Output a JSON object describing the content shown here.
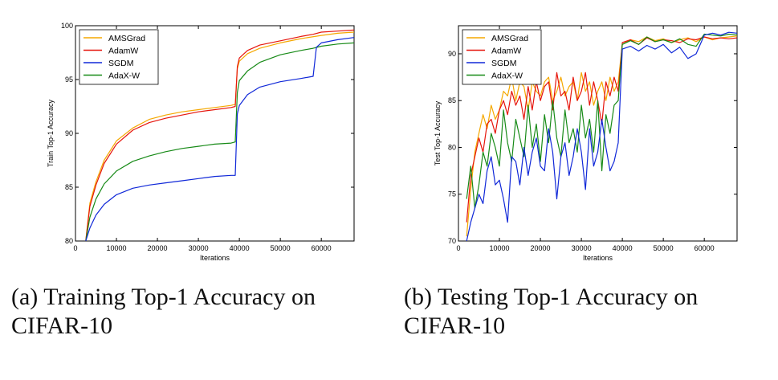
{
  "captions": {
    "a_line1": "(a) Training Top-1 Accuracy on",
    "a_line2": "CIFAR-10",
    "b_line1": "(b) Testing Top-1 Accuracy on",
    "b_line2": "CIFAR-10"
  },
  "colors": {
    "AMSGrad": "#f5a800",
    "AdamW": "#e6150c",
    "SGDM": "#1028d8",
    "AdaX-W": "#178a17"
  },
  "chart_data": [
    {
      "type": "line",
      "xlabel": "Iterations",
      "ylabel": "Train Top-1 Accuracy",
      "xlim": [
        0,
        68000
      ],
      "ylim": [
        80,
        100
      ],
      "xticks": [
        0,
        10000,
        20000,
        30000,
        40000,
        50000,
        60000
      ],
      "yticks": [
        80,
        85,
        90,
        95,
        100
      ],
      "grid": false,
      "legend": "top-left",
      "series": [
        {
          "name": "AMSGrad",
          "x": [
            2500,
            3500,
            5000,
            7000,
            10000,
            14000,
            18000,
            22000,
            26000,
            30000,
            34000,
            38000,
            39000,
            39500,
            40000,
            42000,
            45000,
            50000,
            55000,
            60000,
            64000,
            68000
          ],
          "y": [
            80,
            83.5,
            85.5,
            87.5,
            89.3,
            90.5,
            91.3,
            91.7,
            92.0,
            92.2,
            92.4,
            92.6,
            92.7,
            96.0,
            96.7,
            97.4,
            97.9,
            98.4,
            98.8,
            99.1,
            99.3,
            99.4
          ]
        },
        {
          "name": "AdamW",
          "x": [
            2500,
            3500,
            5000,
            7000,
            10000,
            14000,
            18000,
            22000,
            26000,
            30000,
            34000,
            38000,
            39000,
            39500,
            40000,
            42000,
            45000,
            50000,
            55000,
            58000,
            60000,
            64000,
            68000
          ],
          "y": [
            80,
            83.2,
            85.2,
            87.2,
            89.0,
            90.3,
            91.0,
            91.4,
            91.7,
            92.0,
            92.2,
            92.4,
            92.5,
            96.2,
            97.0,
            97.7,
            98.2,
            98.6,
            99.0,
            99.2,
            99.4,
            99.5,
            99.6
          ]
        },
        {
          "name": "SGDM",
          "x": [
            2500,
            3500,
            5000,
            7000,
            10000,
            14000,
            18000,
            22000,
            26000,
            30000,
            34000,
            38000,
            39000,
            39500,
            40000,
            42000,
            45000,
            50000,
            55000,
            58000,
            58800,
            60000,
            64000,
            68000
          ],
          "y": [
            80,
            81.2,
            82.4,
            83.4,
            84.3,
            84.9,
            85.2,
            85.4,
            85.6,
            85.8,
            86.0,
            86.1,
            86.1,
            91.8,
            92.6,
            93.6,
            94.3,
            94.8,
            95.1,
            95.3,
            98.0,
            98.4,
            98.7,
            98.9
          ]
        },
        {
          "name": "AdaX-W",
          "x": [
            2500,
            3500,
            5000,
            7000,
            10000,
            14000,
            18000,
            22000,
            26000,
            30000,
            34000,
            38000,
            39000,
            39500,
            40000,
            42000,
            45000,
            50000,
            55000,
            58000,
            60000,
            64000,
            68000
          ],
          "y": [
            80,
            82.2,
            83.9,
            85.3,
            86.5,
            87.4,
            87.9,
            88.3,
            88.6,
            88.8,
            89.0,
            89.1,
            89.2,
            93.8,
            94.9,
            95.8,
            96.6,
            97.3,
            97.7,
            97.9,
            98.1,
            98.3,
            98.4
          ]
        }
      ]
    },
    {
      "type": "line",
      "xlabel": "Iterations",
      "ylabel": "Test Top-1 Accuracy",
      "xlim": [
        0,
        68000
      ],
      "ylim": [
        70,
        93
      ],
      "xticks": [
        0,
        10000,
        20000,
        30000,
        40000,
        50000,
        60000
      ],
      "yticks": [
        70,
        75,
        80,
        85,
        90
      ],
      "grid": false,
      "legend": "top-left",
      "series": [
        {
          "name": "AMSGrad",
          "x": [
            2000,
            3000,
            4000,
            5000,
            6000,
            7000,
            8000,
            9000,
            10000,
            11000,
            12000,
            13000,
            14000,
            15000,
            16000,
            17000,
            18000,
            19000,
            20000,
            21000,
            22000,
            23000,
            24000,
            25000,
            26000,
            27000,
            28000,
            29000,
            30000,
            31000,
            32000,
            33000,
            34000,
            35000,
            36000,
            37000,
            38000,
            39000,
            40000,
            42000,
            44000,
            46000,
            48000,
            50000,
            52000,
            54000,
            56000,
            58000,
            60000,
            62000,
            64000,
            66000,
            68000
          ],
          "y": [
            70.5,
            75.5,
            79.5,
            81.5,
            83.5,
            82.0,
            84.5,
            83.0,
            84.0,
            86.0,
            85.5,
            87.5,
            85.0,
            87.0,
            86.5,
            84.0,
            87.0,
            86.0,
            85.5,
            87.0,
            87.5,
            85.0,
            86.0,
            87.5,
            85.5,
            86.5,
            87.0,
            85.0,
            88.0,
            86.0,
            87.0,
            84.5,
            86.0,
            87.0,
            85.0,
            87.5,
            86.0,
            87.0,
            91.0,
            91.5,
            91.3,
            91.8,
            91.4,
            91.6,
            91.2,
            91.5,
            91.7,
            91.3,
            91.8,
            91.5,
            91.7,
            91.8,
            91.9
          ]
        },
        {
          "name": "AdamW",
          "x": [
            2000,
            3000,
            4000,
            5000,
            6000,
            7000,
            8000,
            9000,
            10000,
            11000,
            12000,
            13000,
            14000,
            15000,
            16000,
            17000,
            18000,
            19000,
            20000,
            21000,
            22000,
            23000,
            24000,
            25000,
            26000,
            27000,
            28000,
            29000,
            30000,
            31000,
            32000,
            33000,
            34000,
            35000,
            36000,
            37000,
            38000,
            39000,
            40000,
            42000,
            44000,
            46000,
            48000,
            50000,
            52000,
            54000,
            56000,
            58000,
            60000,
            62000,
            64000,
            66000,
            68000
          ],
          "y": [
            72.0,
            77.0,
            79.0,
            81.0,
            79.5,
            82.5,
            83.0,
            81.5,
            84.0,
            85.0,
            83.5,
            86.0,
            84.5,
            85.5,
            83.0,
            86.5,
            84.0,
            87.0,
            85.0,
            86.5,
            87.0,
            84.0,
            88.0,
            85.5,
            86.0,
            84.0,
            87.5,
            85.0,
            86.0,
            88.0,
            84.5,
            87.0,
            85.0,
            82.5,
            87.0,
            85.5,
            87.5,
            86.0,
            91.2,
            91.5,
            91.0,
            91.7,
            91.3,
            91.5,
            91.4,
            91.2,
            91.6,
            91.5,
            91.8,
            91.6,
            91.7,
            91.6,
            91.7
          ]
        },
        {
          "name": "SGDM",
          "x": [
            2000,
            3000,
            4000,
            5000,
            6000,
            7000,
            8000,
            9000,
            10000,
            11000,
            12000,
            13000,
            14000,
            15000,
            16000,
            17000,
            18000,
            19000,
            20000,
            21000,
            22000,
            23000,
            24000,
            25000,
            26000,
            27000,
            28000,
            29000,
            30000,
            31000,
            32000,
            33000,
            34000,
            35000,
            36000,
            37000,
            38000,
            39000,
            40000,
            42000,
            44000,
            46000,
            48000,
            50000,
            52000,
            54000,
            56000,
            58000,
            60000,
            62000,
            64000,
            66000,
            68000
          ],
          "y": [
            70.0,
            72.0,
            73.5,
            75.0,
            74.0,
            77.5,
            79.0,
            76.0,
            76.5,
            74.5,
            72.0,
            79.0,
            78.5,
            76.0,
            80.0,
            77.0,
            79.5,
            81.0,
            78.0,
            77.5,
            82.0,
            79.5,
            74.5,
            79.0,
            80.5,
            77.0,
            79.0,
            82.0,
            79.5,
            75.5,
            82.0,
            78.0,
            79.5,
            83.0,
            80.0,
            77.5,
            78.5,
            80.5,
            90.5,
            90.8,
            90.3,
            90.9,
            90.5,
            91.0,
            90.1,
            90.7,
            89.5,
            90.0,
            92.0,
            92.2,
            92.0,
            92.3,
            92.2
          ]
        },
        {
          "name": "AdaX-W",
          "x": [
            2000,
            3000,
            4000,
            5000,
            6000,
            7000,
            8000,
            9000,
            10000,
            11000,
            12000,
            13000,
            14000,
            15000,
            16000,
            17000,
            18000,
            19000,
            20000,
            21000,
            22000,
            23000,
            24000,
            25000,
            26000,
            27000,
            28000,
            29000,
            30000,
            31000,
            32000,
            33000,
            34000,
            35000,
            36000,
            37000,
            38000,
            39000,
            40000,
            42000,
            44000,
            46000,
            48000,
            50000,
            52000,
            54000,
            56000,
            58000,
            60000,
            62000,
            64000,
            66000,
            68000
          ],
          "y": [
            74.5,
            78.0,
            73.5,
            76.0,
            79.5,
            78.0,
            81.5,
            80.0,
            78.0,
            84.0,
            80.5,
            78.5,
            83.0,
            81.0,
            79.0,
            84.5,
            80.0,
            82.5,
            78.5,
            83.5,
            80.5,
            85.0,
            81.0,
            79.0,
            84.0,
            80.5,
            82.0,
            79.5,
            84.5,
            81.0,
            83.0,
            79.5,
            85.0,
            77.5,
            83.5,
            81.5,
            84.5,
            85.0,
            91.0,
            91.4,
            91.0,
            91.8,
            91.3,
            91.5,
            91.2,
            91.6,
            91.0,
            90.8,
            92.1,
            92.0,
            91.9,
            92.1,
            92.0
          ]
        }
      ]
    }
  ]
}
